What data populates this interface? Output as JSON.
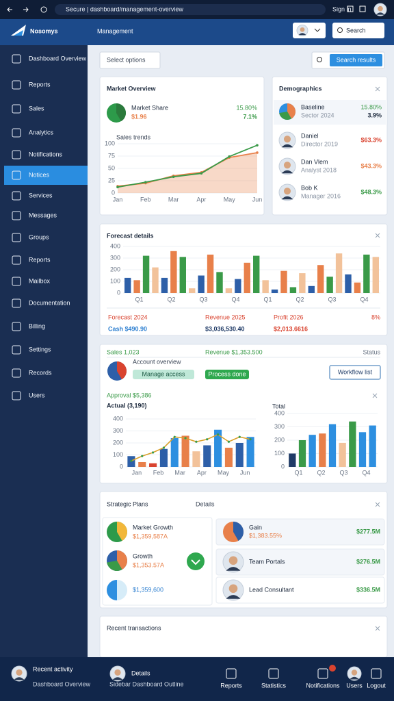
{
  "browser": {
    "url": "Secure | dashboard/management-overview",
    "account": "Sign in"
  },
  "header": {
    "logo": "Nosomys",
    "title": "Management",
    "search": "Search"
  },
  "sidebar": {
    "active": 5,
    "items": [
      "Dashboard Overview",
      "Reports",
      "Sales",
      "Analytics",
      "Notifications",
      "Notices",
      "Services",
      "Messages",
      "Groups",
      "Reports",
      "Mailbox",
      "Documentation",
      "Billing",
      "Settings",
      "Records",
      "Users"
    ]
  },
  "toolbar": {
    "filter": "Select options",
    "button": "Search results"
  },
  "market": {
    "title": "Market Overview",
    "stat_label": "Market Share",
    "stat_value": "$1.96",
    "change": "15.80%",
    "change_value": "7.1%",
    "chart": {
      "title": "Sales trends",
      "categories": [
        "Jan",
        "Feb",
        "Mar",
        "Apr",
        "May",
        "Jun"
      ],
      "ylim": [
        0,
        100
      ],
      "yticks": [
        0,
        25,
        50,
        75,
        100
      ],
      "series": [
        {
          "color": "#3a9a48",
          "values": [
            12,
            22,
            33,
            40,
            74,
            97
          ]
        },
        {
          "color": "#e8804a",
          "values": [
            14,
            20,
            35,
            42,
            72,
            82
          ]
        }
      ]
    }
  },
  "demographics": {
    "title": "Demographics",
    "rows": [
      {
        "name": "Baseline",
        "detail": "Sector 2024",
        "value": "15.80%",
        "value2": "3.9%",
        "color": "#3a9a48"
      },
      {
        "name": "Daniel",
        "detail": "Director 2019",
        "value": "$63.3%",
        "color": "#d9432f"
      },
      {
        "name": "Dan Vlem",
        "detail": "Analyst 2018",
        "value": "$43.3%",
        "color": "#e8804a"
      },
      {
        "name": "Bob K",
        "detail": "Manager 2016",
        "value": "$48.3%",
        "color": "#3a9a48"
      }
    ]
  },
  "forecast": {
    "title": "Forecast details",
    "chart": {
      "ylim": [
        0,
        400
      ],
      "yticks": [
        0,
        100,
        200,
        300,
        400
      ],
      "palette": [
        "#2d5fa8",
        "#e8804a",
        "#3a9a48",
        "#f2c29a"
      ],
      "values": [
        130,
        110,
        320,
        220,
        130,
        360,
        310,
        40,
        150,
        330,
        180,
        40,
        120,
        260,
        320,
        110,
        30,
        190,
        50,
        170,
        60,
        240,
        140,
        340,
        160,
        90,
        330,
        310
      ],
      "xlabels": [
        "Q1",
        "Q2",
        "Q3",
        "Q4",
        "Q1",
        "Q2",
        "Q3",
        "Q4"
      ]
    },
    "stats": [
      {
        "label": "Forecast 2024",
        "value": "Cash $490.90",
        "color": "#2d7fd0"
      },
      {
        "label": "Revenue 2025",
        "value": "$3,036,530.40",
        "color": "#1f3a66"
      },
      {
        "label": "Profit 2026",
        "value": "$2,013.6616",
        "color": "#d9432f"
      }
    ],
    "change": "8%"
  },
  "performance": {
    "sales": "Sales 1,023",
    "revenue": "Revenue $1,353.500",
    "status": "Status",
    "overview": "Account overview",
    "pill_access": "Manage access",
    "pill_done": "Process done",
    "button": "Workflow list",
    "chart_a": {
      "subtitle": "Approval $5,386",
      "title": "Actual (3,190)",
      "ylim": [
        0,
        400
      ],
      "yticks": [
        0,
        100,
        200,
        300,
        400
      ],
      "xlabels": [
        "Jan",
        "Feb",
        "Mar",
        "Apr",
        "May",
        "Jun"
      ],
      "bars": [
        90,
        40,
        30,
        150,
        240,
        260,
        130,
        180,
        310,
        160,
        200,
        250
      ],
      "colors": [
        "#2d5fa8",
        "#e8804a",
        "#d9432f",
        "#2d5fa8",
        "#2d8fe0",
        "#e8804a",
        "#f2c29a",
        "#2d5fa8",
        "#2d8fe0",
        "#e8804a",
        "#2d5fa8",
        "#2d8fe0"
      ],
      "line": [
        50,
        90,
        120,
        160,
        250,
        240,
        210,
        230,
        270,
        210,
        250,
        230
      ]
    },
    "chart_b": {
      "title": "Total",
      "ylim": [
        0,
        400
      ],
      "yticks": [
        0,
        100,
        200,
        300,
        400
      ],
      "xlabels": [
        "Q1",
        "Q2",
        "Q3",
        "Q4"
      ],
      "bars": [
        100,
        200,
        240,
        250,
        320,
        180,
        340,
        260,
        310
      ],
      "colors": [
        "#1f3a66",
        "#3a9a48",
        "#2d8fe0",
        "#e8804a",
        "#2d8fe0",
        "#f2c29a",
        "#3a9a48",
        "#2d8fe0",
        "#2d8fe0"
      ]
    }
  },
  "strategic": {
    "title": "Strategic Plans",
    "link": "Details",
    "left": [
      {
        "name": "Market Growth",
        "value": "$1,359,587A"
      },
      {
        "name": "Growth",
        "value": "$1,353.57A"
      },
      {
        "value": "$1,359,600"
      }
    ],
    "right": [
      {
        "name": "Gain",
        "detail": "$1,383.55%",
        "value": "$277.5M"
      },
      {
        "name": "Team Portals",
        "value": "$276.5M"
      },
      {
        "name": "Lead Consultant",
        "value": "$336.5M"
      }
    ]
  },
  "transactions": {
    "title": "Recent transactions"
  },
  "footer": {
    "items": [
      {
        "label": "Recent activity",
        "detail": "Dashboard Overview"
      },
      {
        "label": "Details",
        "detail": "Sidebar Dashboard Outline"
      },
      {
        "label": "Reports"
      },
      {
        "label": "Statistics"
      },
      {
        "label": "Notifications"
      },
      {
        "label": "Users"
      },
      {
        "label": "Logout"
      }
    ]
  }
}
